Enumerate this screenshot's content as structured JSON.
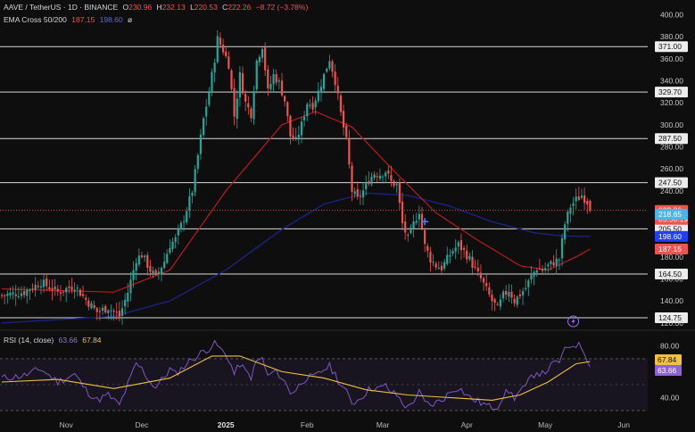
{
  "legend": {
    "symbol": "AAVE / TetherUS · 1D · BINANCE",
    "o_label": "O",
    "o": "230.96",
    "h_label": "H",
    "h": "232.13",
    "l_label": "L",
    "l": "220.53",
    "c_label": "C",
    "c": "222.26",
    "change": "−8.72 (−3.78%)",
    "ema_name": "EMA Cross 50/200",
    "ema50": "187.15",
    "ema200": "198.60",
    "ema_extra": "ø",
    "rsi_name": "RSI (14, close)",
    "rsi": "63.66",
    "rsi_ma": "67.84"
  },
  "badges": {
    "price": "222.26",
    "countdown": "05:50:19",
    "ema200": "198.60",
    "ema50": "187.15",
    "lvl_218": "218.65",
    "rsi_ma": "67.84",
    "rsi": "63.66"
  },
  "colors": {
    "background": "#0e0e0e",
    "up": "#26a69a",
    "down": "#ef5350",
    "ema50": "#b71c1c",
    "ema200": "#1a237e",
    "rsi": "#7e57c2",
    "rsi_ma": "#f0c040",
    "horizontal_lines": "#d8d8d8",
    "accent": "#2962ff"
  },
  "chart_data": {
    "type": "candlestick",
    "x_labels": [
      "Nov",
      "Dec",
      "2025",
      "Feb",
      "Mar",
      "Apr",
      "May",
      "Jun"
    ],
    "y_ticks": [
      120,
      140,
      160,
      180,
      200,
      220,
      240,
      260,
      280,
      300,
      320,
      340,
      360,
      380,
      400
    ],
    "y_range": [
      115,
      402
    ],
    "horizontal_levels": [
      371.0,
      329.7,
      287.5,
      247.5,
      205.5,
      164.5,
      124.75
    ],
    "price_trajectory": [
      [
        0,
        145
      ],
      [
        8,
        148
      ],
      [
        14,
        157
      ],
      [
        20,
        148
      ],
      [
        26,
        154
      ],
      [
        30,
        141
      ],
      [
        34,
        130
      ],
      [
        38,
        134
      ],
      [
        42,
        126
      ],
      [
        45,
        148
      ],
      [
        48,
        178
      ],
      [
        50,
        182
      ],
      [
        53,
        168
      ],
      [
        55,
        162
      ],
      [
        58,
        176
      ],
      [
        60,
        191
      ],
      [
        62,
        196
      ],
      [
        65,
        215
      ],
      [
        68,
        240
      ],
      [
        70,
        272
      ],
      [
        72,
        305
      ],
      [
        74,
        330
      ],
      [
        76,
        360
      ],
      [
        77,
        378
      ],
      [
        79,
        368
      ],
      [
        81,
        355
      ],
      [
        83,
        308
      ],
      [
        85,
        345
      ],
      [
        87,
        320
      ],
      [
        89,
        310
      ],
      [
        91,
        358
      ],
      [
        93,
        372
      ],
      [
        95,
        330
      ],
      [
        97,
        345
      ],
      [
        99,
        338
      ],
      [
        101,
        322
      ],
      [
        103,
        290
      ],
      [
        105,
        285
      ],
      [
        107,
        300
      ],
      [
        109,
        320
      ],
      [
        111,
        318
      ],
      [
        113,
        330
      ],
      [
        115,
        345
      ],
      [
        117,
        360
      ],
      [
        119,
        340
      ],
      [
        121,
        310
      ],
      [
        123,
        285
      ],
      [
        125,
        240
      ],
      [
        127,
        232
      ],
      [
        129,
        240
      ],
      [
        131,
        250
      ],
      [
        133,
        256
      ],
      [
        135,
        255
      ],
      [
        137,
        258
      ],
      [
        139,
        248
      ],
      [
        141,
        245
      ],
      [
        143,
        210
      ],
      [
        145,
        196
      ],
      [
        147,
        210
      ],
      [
        149,
        222
      ],
      [
        151,
        190
      ],
      [
        153,
        178
      ],
      [
        155,
        172
      ],
      [
        157,
        170
      ],
      [
        159,
        178
      ],
      [
        161,
        186
      ],
      [
        163,
        191
      ],
      [
        165,
        185
      ],
      [
        167,
        178
      ],
      [
        169,
        168
      ],
      [
        171,
        160
      ],
      [
        173,
        150
      ],
      [
        175,
        140
      ],
      [
        177,
        133
      ],
      [
        179,
        145
      ],
      [
        181,
        150
      ],
      [
        183,
        140
      ],
      [
        185,
        146
      ],
      [
        187,
        152
      ],
      [
        189,
        162
      ],
      [
        191,
        170
      ],
      [
        193,
        168
      ],
      [
        195,
        172
      ],
      [
        197,
        175
      ],
      [
        199,
        178
      ],
      [
        201,
        210
      ],
      [
        203,
        226
      ],
      [
        205,
        232
      ],
      [
        207,
        236
      ],
      [
        209,
        230
      ],
      [
        210,
        222.26
      ]
    ],
    "ema50_curve": [
      [
        0,
        151
      ],
      [
        40,
        148
      ],
      [
        60,
        168
      ],
      [
        80,
        240
      ],
      [
        100,
        300
      ],
      [
        112,
        312
      ],
      [
        125,
        298
      ],
      [
        140,
        258
      ],
      [
        155,
        220
      ],
      [
        170,
        195
      ],
      [
        185,
        172
      ],
      [
        195,
        168
      ],
      [
        205,
        180
      ],
      [
        210,
        187.15
      ]
    ],
    "ema200_curve": [
      [
        0,
        120
      ],
      [
        40,
        126
      ],
      [
        60,
        140
      ],
      [
        80,
        168
      ],
      [
        100,
        205
      ],
      [
        115,
        228
      ],
      [
        130,
        238
      ],
      [
        145,
        236
      ],
      [
        160,
        226
      ],
      [
        175,
        212
      ],
      [
        190,
        202
      ],
      [
        200,
        199
      ],
      [
        210,
        198.6
      ]
    ],
    "rsi_range": [
      30,
      85
    ],
    "rsi_ticks": [
      40,
      80
    ],
    "rsi_band": [
      30,
      70
    ],
    "rsi_series": [
      [
        0,
        55
      ],
      [
        8,
        57
      ],
      [
        14,
        62
      ],
      [
        20,
        52
      ],
      [
        26,
        58
      ],
      [
        30,
        46
      ],
      [
        34,
        38
      ],
      [
        38,
        42
      ],
      [
        42,
        34
      ],
      [
        45,
        50
      ],
      [
        48,
        66
      ],
      [
        50,
        62
      ],
      [
        53,
        52
      ],
      [
        55,
        48
      ],
      [
        58,
        56
      ],
      [
        60,
        62
      ],
      [
        62,
        58
      ],
      [
        65,
        64
      ],
      [
        68,
        70
      ],
      [
        70,
        72
      ],
      [
        72,
        76
      ],
      [
        74,
        78
      ],
      [
        76,
        82
      ],
      [
        77,
        80
      ],
      [
        79,
        75
      ],
      [
        81,
        70
      ],
      [
        83,
        58
      ],
      [
        85,
        66
      ],
      [
        87,
        60
      ],
      [
        89,
        56
      ],
      [
        91,
        68
      ],
      [
        93,
        70
      ],
      [
        95,
        56
      ],
      [
        97,
        60
      ],
      [
        99,
        58
      ],
      [
        101,
        52
      ],
      [
        103,
        44
      ],
      [
        105,
        46
      ],
      [
        107,
        52
      ],
      [
        109,
        56
      ],
      [
        111,
        55
      ],
      [
        113,
        58
      ],
      [
        115,
        62
      ],
      [
        117,
        64
      ],
      [
        119,
        58
      ],
      [
        121,
        50
      ],
      [
        123,
        44
      ],
      [
        125,
        36
      ],
      [
        127,
        38
      ],
      [
        129,
        42
      ],
      [
        131,
        46
      ],
      [
        133,
        48
      ],
      [
        135,
        47
      ],
      [
        137,
        49
      ],
      [
        139,
        44
      ],
      [
        141,
        42
      ],
      [
        143,
        36
      ],
      [
        145,
        32
      ],
      [
        147,
        38
      ],
      [
        149,
        44
      ],
      [
        151,
        36
      ],
      [
        153,
        34
      ],
      [
        155,
        36
      ],
      [
        157,
        38
      ],
      [
        159,
        42
      ],
      [
        161,
        46
      ],
      [
        163,
        48
      ],
      [
        165,
        44
      ],
      [
        167,
        40
      ],
      [
        169,
        38
      ],
      [
        171,
        36
      ],
      [
        173,
        34
      ],
      [
        175,
        32
      ],
      [
        177,
        32
      ],
      [
        179,
        42
      ],
      [
        181,
        45
      ],
      [
        183,
        40
      ],
      [
        185,
        45
      ],
      [
        187,
        48
      ],
      [
        189,
        56
      ],
      [
        191,
        60
      ],
      [
        193,
        58
      ],
      [
        195,
        62
      ],
      [
        197,
        66
      ],
      [
        199,
        68
      ],
      [
        201,
        76
      ],
      [
        203,
        80
      ],
      [
        205,
        81
      ],
      [
        207,
        79
      ],
      [
        209,
        70
      ],
      [
        210,
        63.66
      ]
    ],
    "rsi_ma_series": [
      [
        0,
        52
      ],
      [
        20,
        54
      ],
      [
        40,
        47
      ],
      [
        60,
        55
      ],
      [
        75,
        72
      ],
      [
        85,
        72
      ],
      [
        100,
        60
      ],
      [
        115,
        55
      ],
      [
        130,
        46
      ],
      [
        145,
        42
      ],
      [
        160,
        40
      ],
      [
        175,
        38
      ],
      [
        185,
        42
      ],
      [
        195,
        52
      ],
      [
        205,
        66
      ],
      [
        210,
        67.84
      ]
    ]
  }
}
